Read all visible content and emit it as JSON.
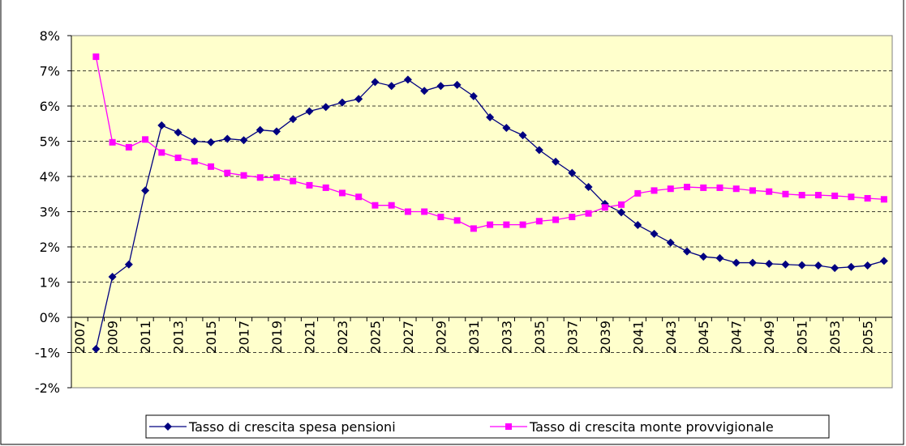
{
  "chart_data": {
    "type": "line",
    "categories": [
      "2007",
      null,
      "2009",
      null,
      "2011",
      null,
      "2013",
      null,
      "2015",
      null,
      "2017",
      null,
      "2019",
      null,
      "2021",
      null,
      "2023",
      null,
      "2025",
      null,
      "2027",
      null,
      "2029",
      null,
      "2031",
      null,
      "2033",
      null,
      "2035",
      null,
      "2037",
      null,
      "2039",
      null,
      "2041",
      null,
      "2043",
      null,
      "2045",
      null,
      "2047",
      null,
      "2049",
      null,
      "2051",
      null,
      "2053",
      null,
      "2055",
      null
    ],
    "series": [
      {
        "name": "Tasso di crescita spesa pensioni",
        "color": "#000080",
        "marker": "diamond",
        "values": [
          null,
          -0.9,
          1.15,
          1.5,
          3.6,
          5.45,
          5.25,
          5.0,
          4.97,
          5.07,
          5.03,
          5.32,
          5.28,
          5.63,
          5.85,
          5.97,
          6.1,
          6.2,
          6.68,
          6.57,
          6.75,
          6.43,
          6.57,
          6.6,
          6.28,
          5.68,
          5.38,
          5.17,
          4.75,
          4.42,
          4.1,
          3.7,
          3.22,
          2.98,
          2.62,
          2.37,
          2.12,
          1.87,
          1.72,
          1.68,
          1.55,
          1.55,
          1.52,
          1.5,
          1.48,
          1.47,
          1.4,
          1.43,
          1.47,
          1.6
        ]
      },
      {
        "name": "Tasso di crescita monte provvigionale",
        "color": "#FF00FF",
        "marker": "square",
        "values": [
          null,
          7.4,
          4.97,
          4.83,
          5.05,
          4.68,
          4.53,
          4.43,
          4.28,
          4.1,
          4.03,
          3.97,
          3.97,
          3.87,
          3.75,
          3.68,
          3.53,
          3.42,
          3.18,
          3.18,
          3.0,
          3.0,
          2.85,
          2.75,
          2.52,
          2.63,
          2.63,
          2.63,
          2.73,
          2.77,
          2.85,
          2.95,
          3.12,
          3.2,
          3.52,
          3.6,
          3.65,
          3.7,
          3.68,
          3.68,
          3.65,
          3.6,
          3.57,
          3.5,
          3.47,
          3.47,
          3.45,
          3.42,
          3.38,
          3.35
        ]
      }
    ],
    "ylim": [
      -2,
      8
    ],
    "yticks": [
      {
        "value": -2,
        "label": "-2%"
      },
      {
        "value": -1,
        "label": "-1%"
      },
      {
        "value": 0,
        "label": "0%"
      },
      {
        "value": 1,
        "label": "1%"
      },
      {
        "value": 2,
        "label": "2%"
      },
      {
        "value": 3,
        "label": "3%"
      },
      {
        "value": 4,
        "label": "4%"
      },
      {
        "value": 5,
        "label": "5%"
      },
      {
        "value": 6,
        "label": "6%"
      },
      {
        "value": 7,
        "label": "7%"
      },
      {
        "value": 8,
        "label": "8%"
      }
    ],
    "grid": true,
    "legend": "bottom"
  }
}
